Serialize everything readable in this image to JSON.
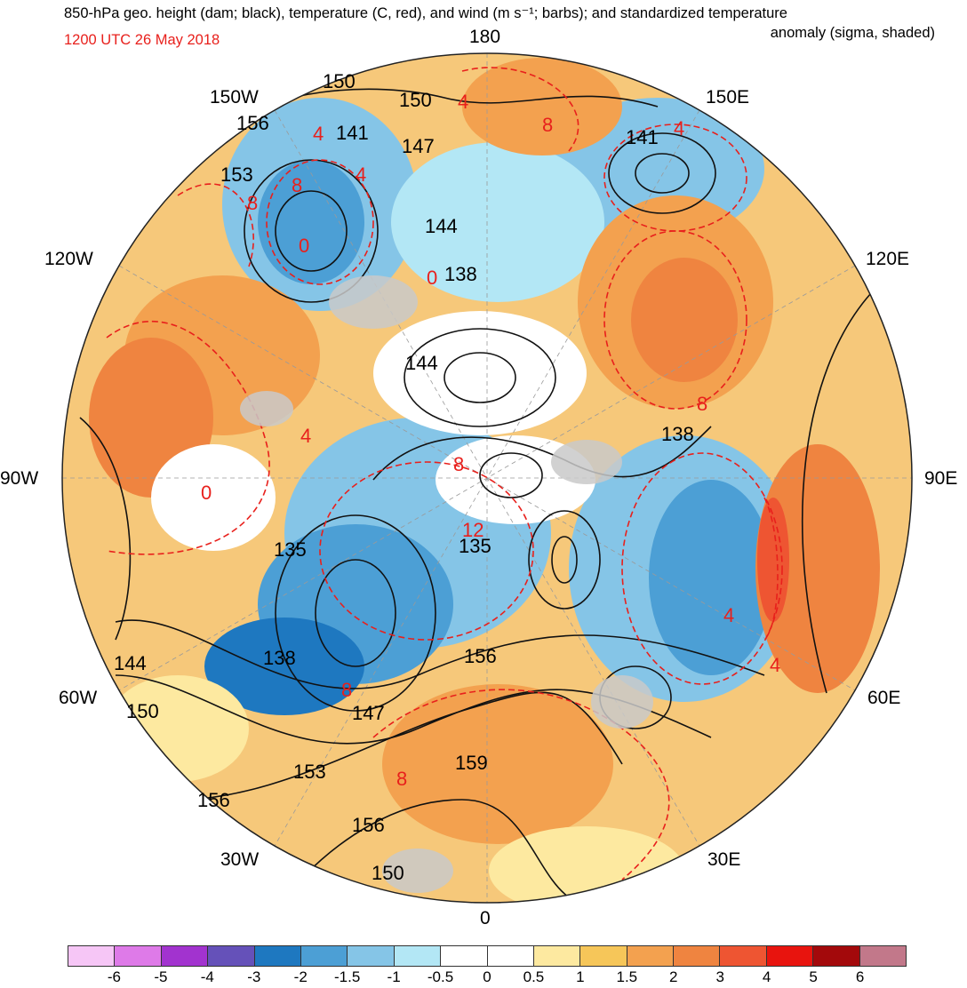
{
  "title": {
    "line1": "850-hPa geo. height (dam; black), temperature (C, red), and wind (m s⁻¹; barbs); and standardized temperature",
    "line2": "anomaly (sigma, shaded)"
  },
  "datetime": "1200 UTC 26 May 2018",
  "longitude_labels": {
    "lon180": "180",
    "lon150e": "150E",
    "lon120e": "120E",
    "lon90e": "90E",
    "lon60e": "60E",
    "lon30e": "30E",
    "lon0": "0",
    "lon30w": "30W",
    "lon60w": "60W",
    "lon90w": "90W",
    "lon120w": "120W",
    "lon150w": "150W"
  },
  "height_labels": [
    "150",
    "150",
    "156",
    "141",
    "147",
    "153",
    "144",
    "138",
    "144",
    "138",
    "135",
    "135",
    "156",
    "144",
    "138",
    "150",
    "147",
    "153",
    "159",
    "156",
    "156",
    "150",
    "141"
  ],
  "temperature_labels": [
    "4",
    "4",
    "8",
    "4",
    "8",
    "8",
    "0",
    "0",
    "4",
    "8",
    "0",
    "4",
    "4",
    "8",
    "8",
    "4",
    "12",
    "8"
  ],
  "colorbar": {
    "colors": [
      "#f6c6f6",
      "#de7ae8",
      "#a233cf",
      "#6551b9",
      "#1e78c0",
      "#4c9fd5",
      "#85c5e7",
      "#b3e7f5",
      "#ffffff",
      "#ffffff",
      "#fde9a0",
      "#f6c659",
      "#f3a14f",
      "#ef8440",
      "#ee5532",
      "#e8140e",
      "#a3090b",
      "#c2788a"
    ],
    "tick_labels": [
      "-6",
      "-5",
      "-4",
      "-3",
      "-2",
      "-1.5",
      "-1",
      "-0.5",
      "0",
      "0.5",
      "1",
      "1.5",
      "2",
      "3",
      "4",
      "5",
      "6"
    ]
  }
}
